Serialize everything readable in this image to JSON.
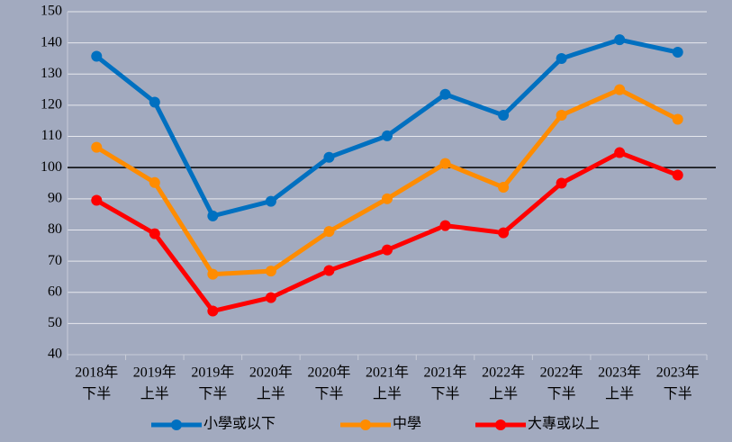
{
  "chart_data": {
    "type": "line",
    "categories": [
      [
        "2018年",
        "下半"
      ],
      [
        "2019年",
        "上半"
      ],
      [
        "2019年",
        "下半"
      ],
      [
        "2020年",
        "上半"
      ],
      [
        "2020年",
        "下半"
      ],
      [
        "2021年",
        "上半"
      ],
      [
        "2021年",
        "下半"
      ],
      [
        "2022年",
        "上半"
      ],
      [
        "2022年",
        "下半"
      ],
      [
        "2023年",
        "上半"
      ],
      [
        "2023年",
        "下半"
      ]
    ],
    "series": [
      {
        "name": "小學或以下",
        "color": "#0070c0",
        "values": [
          135.7,
          121,
          84.5,
          89.2,
          103.3,
          110.2,
          123.5,
          116.8,
          135,
          141,
          137
        ]
      },
      {
        "name": "中學",
        "color": "#ff8c00",
        "values": [
          106.5,
          95.2,
          65.8,
          66.8,
          79.5,
          90,
          101.3,
          93.7,
          116.8,
          125,
          115.5
        ]
      },
      {
        "name": "大專或以上",
        "color": "#ff0000",
        "values": [
          89.5,
          78.8,
          54,
          58.3,
          67,
          73.6,
          81.4,
          79.1,
          95,
          104.8,
          97.6
        ]
      }
    ],
    "reference_line": 100,
    "ylim": [
      40,
      150
    ],
    "yticks": [
      40,
      50,
      60,
      70,
      80,
      90,
      100,
      110,
      120,
      130,
      140,
      150
    ],
    "grid": true,
    "legend": "bottom"
  }
}
